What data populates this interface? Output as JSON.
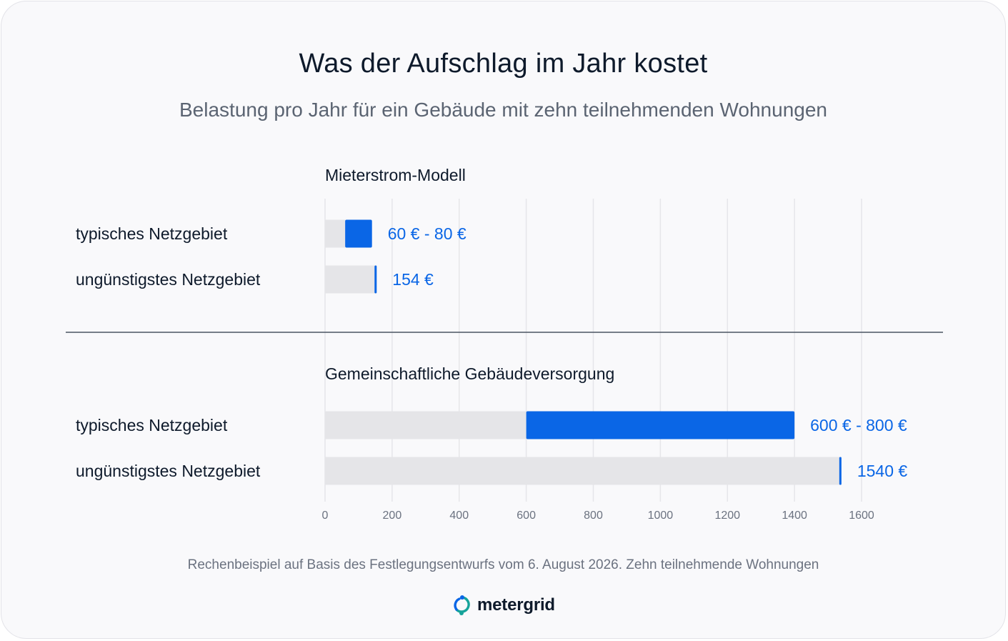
{
  "title": "Was der Aufschlag im Jahr kostet",
  "subtitle": "Belastung pro Jahr für ein Gebäude mit zehn teilnehmenden Wohnungen",
  "footnote": "Rechenbeispiel auf Basis des Festlegungsentwurfs vom 6. August 2026. Zehn teilnehmende Wohnungen",
  "logo": {
    "text": "metergrid",
    "icon": "metergrid-logo-icon"
  },
  "colors": {
    "accent": "#0a66e6",
    "bar_base": "#e5e5e8",
    "grid": "#e6e6ea",
    "divider": "#4b5563"
  },
  "chart_data": {
    "type": "bar",
    "orientation": "horizontal",
    "xlim": [
      0,
      1600
    ],
    "xticks": [
      0,
      200,
      400,
      600,
      800,
      1000,
      1200,
      1400,
      1600
    ],
    "grid": true,
    "groups": [
      {
        "title": "Mieterstrom-Modell",
        "rows": [
          {
            "label": "typisches Netzgebiet",
            "low": 60,
            "high": 80,
            "value_label": "60 € - 80 €"
          },
          {
            "label": "ungünstigstes Netzgebiet",
            "value": 154,
            "value_label": "154 €"
          }
        ]
      },
      {
        "title": "Gemeinschaftliche Gebäudeversorgung",
        "rows": [
          {
            "label": "typisches Netzgebiet",
            "low": 600,
            "high": 800,
            "value_label": "600 € - 800 €"
          },
          {
            "label": "ungünstigstes Netzgebiet",
            "value": 1540,
            "value_label": "1540 €"
          }
        ]
      }
    ]
  }
}
